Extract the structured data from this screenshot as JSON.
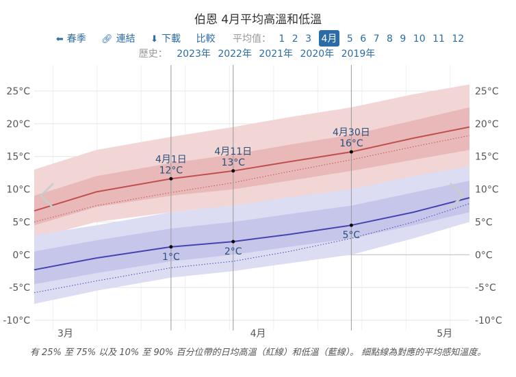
{
  "title": "伯恩 4月平均高溫和低溫",
  "nav": {
    "spring": "春季",
    "link": "連結",
    "download": "下載",
    "compare": "比較",
    "average_label": "平均值：",
    "months": [
      "1",
      "2",
      "3",
      "4月",
      "5",
      "6",
      "7",
      "8",
      "9",
      "10",
      "11",
      "12"
    ],
    "selected_month": "4月"
  },
  "history": {
    "label": "歷史：",
    "years": [
      "2023年",
      "2022年",
      "2021年",
      "2020年",
      "2019年"
    ]
  },
  "caption": "有 25% 至 75% 以及 10% 至 90% 百分位帶的日均高溫（紅線）和低溫（藍線）。 細點線為對應的平均感知溫度。",
  "icons": {
    "back": "arrow-left-icon",
    "link": "link-icon",
    "download": "download-icon",
    "prev": "chevron-left-icon",
    "next": "chevron-right-icon"
  },
  "colors": {
    "high_line": "#c0504d",
    "high_band_outer": "#f2d5d5",
    "high_band_inner": "#e8b4b4",
    "low_line": "#4444b0",
    "low_band_outer": "#dcdcf2",
    "low_band_inner": "#c2c2ea",
    "accent": "#2a6ba8"
  },
  "chart_data": {
    "type": "line",
    "x_start": "3月10日",
    "x_end": "5月19日",
    "x_ticks": [
      "3月",
      "4月",
      "5月"
    ],
    "y_ticks": [
      "25°C",
      "20°C",
      "15°C",
      "10°C",
      "5°C",
      "0°C",
      "-5°C",
      "-10°C"
    ],
    "ylim": [
      -10,
      27
    ],
    "grid": true,
    "series": [
      {
        "key": "high",
        "x": [
          "3月10日",
          "3月20日",
          "4月1日",
          "4月11日",
          "4月20日",
          "4月30日",
          "5月10日",
          "5月19日"
        ],
        "values": [
          6.7,
          9.6,
          11.6,
          12.8,
          14.2,
          15.7,
          17.8,
          19.5
        ],
        "p10": [
          2.5,
          5.0,
          6.5,
          7.5,
          8.5,
          9.8,
          11.5,
          13.0
        ],
        "p25": [
          4.5,
          7.3,
          9.0,
          10.0,
          11.3,
          12.8,
          14.5,
          16.0
        ],
        "p75": [
          9.0,
          12.0,
          14.0,
          15.3,
          16.8,
          18.3,
          20.5,
          22.5
        ],
        "p90": [
          13.0,
          16.0,
          18.0,
          19.5,
          21.0,
          22.5,
          24.5,
          26.0
        ],
        "feels": [
          5.0,
          7.5,
          9.5,
          11.0,
          12.7,
          14.5,
          16.5,
          18.2
        ]
      },
      {
        "key": "low",
        "x": [
          "3月10日",
          "3月20日",
          "4月1日",
          "4月11日",
          "4月20日",
          "4月30日",
          "5月10日",
          "5月19日"
        ],
        "values": [
          -2.3,
          -0.5,
          1.2,
          2.0,
          3.1,
          4.5,
          6.5,
          8.7
        ],
        "p10": [
          -7.5,
          -5.5,
          -3.5,
          -2.5,
          -1.3,
          0.0,
          2.5,
          5.0
        ],
        "p25": [
          -4.5,
          -2.8,
          -1.0,
          0.0,
          1.2,
          2.5,
          4.5,
          6.5
        ],
        "p75": [
          0.5,
          2.2,
          4.0,
          5.0,
          6.2,
          7.5,
          9.5,
          11.3
        ],
        "p90": [
          3.0,
          4.5,
          6.5,
          7.5,
          8.8,
          10.0,
          12.0,
          13.5
        ],
        "feels": [
          -5.8,
          -4.0,
          -2.0,
          -1.0,
          0.5,
          2.5,
          5.0,
          7.8
        ]
      }
    ],
    "annotations": [
      {
        "date": "4月1日",
        "high": "12°C",
        "low": "1°C"
      },
      {
        "date": "4月11日",
        "high": "13°C",
        "low": "2°C"
      },
      {
        "date": "4月30日",
        "high": "16°C",
        "low": "5°C"
      }
    ]
  }
}
